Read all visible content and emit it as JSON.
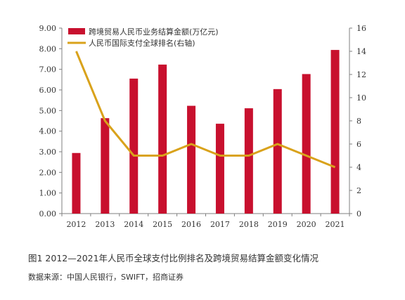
{
  "caption": "图1   2012—2021年人民币全球支付比例排名及跨境贸易结算金额变化情况",
  "source": "数据来源：中国人民银行，SWIFT，招商证券",
  "chart_data": {
    "type": "bar",
    "categories": [
      "2012",
      "2013",
      "2014",
      "2015",
      "2016",
      "2017",
      "2018",
      "2019",
      "2020",
      "2021"
    ],
    "series": [
      {
        "name": "跨境贸易人民币业务结算金额(万亿元)",
        "type": "bar",
        "axis": "left",
        "color": "#c8102e",
        "values": [
          2.94,
          4.63,
          6.55,
          7.23,
          5.23,
          4.36,
          5.11,
          6.04,
          6.77,
          7.94
        ]
      },
      {
        "name": "人民币国际支付全球排名(右轴)",
        "type": "line",
        "axis": "right",
        "color": "#d9a21b",
        "values": [
          14,
          8,
          5,
          5,
          6,
          5,
          5,
          6,
          5,
          4
        ]
      }
    ],
    "y_left": {
      "min": 0,
      "max": 9,
      "ticks": [
        "0.00",
        "1.00",
        "2.00",
        "3.00",
        "4.00",
        "5.00",
        "6.00",
        "7.00",
        "8.00",
        "9.00"
      ]
    },
    "y_right": {
      "min": 0,
      "max": 16,
      "ticks": [
        "0",
        "2",
        "4",
        "6",
        "8",
        "10",
        "12",
        "14",
        "16"
      ]
    },
    "grid": false,
    "legend_position": "top-left"
  }
}
